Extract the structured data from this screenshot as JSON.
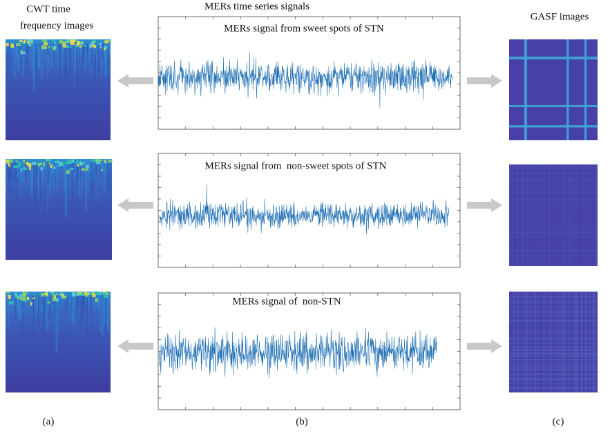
{
  "left_header": {
    "line1": "CWT time",
    "line2": "frequency images"
  },
  "center_header": "MERs time series signals",
  "right_header": "GASF images",
  "panels": [
    {
      "label": "MERs signal from sweet spots of STN"
    },
    {
      "label": "MERs signal from  non-sweet spots of STN"
    },
    {
      "label": "MERs signal of  non-STN"
    }
  ],
  "captions": [
    "(a)",
    "(b)",
    "(c)"
  ]
}
